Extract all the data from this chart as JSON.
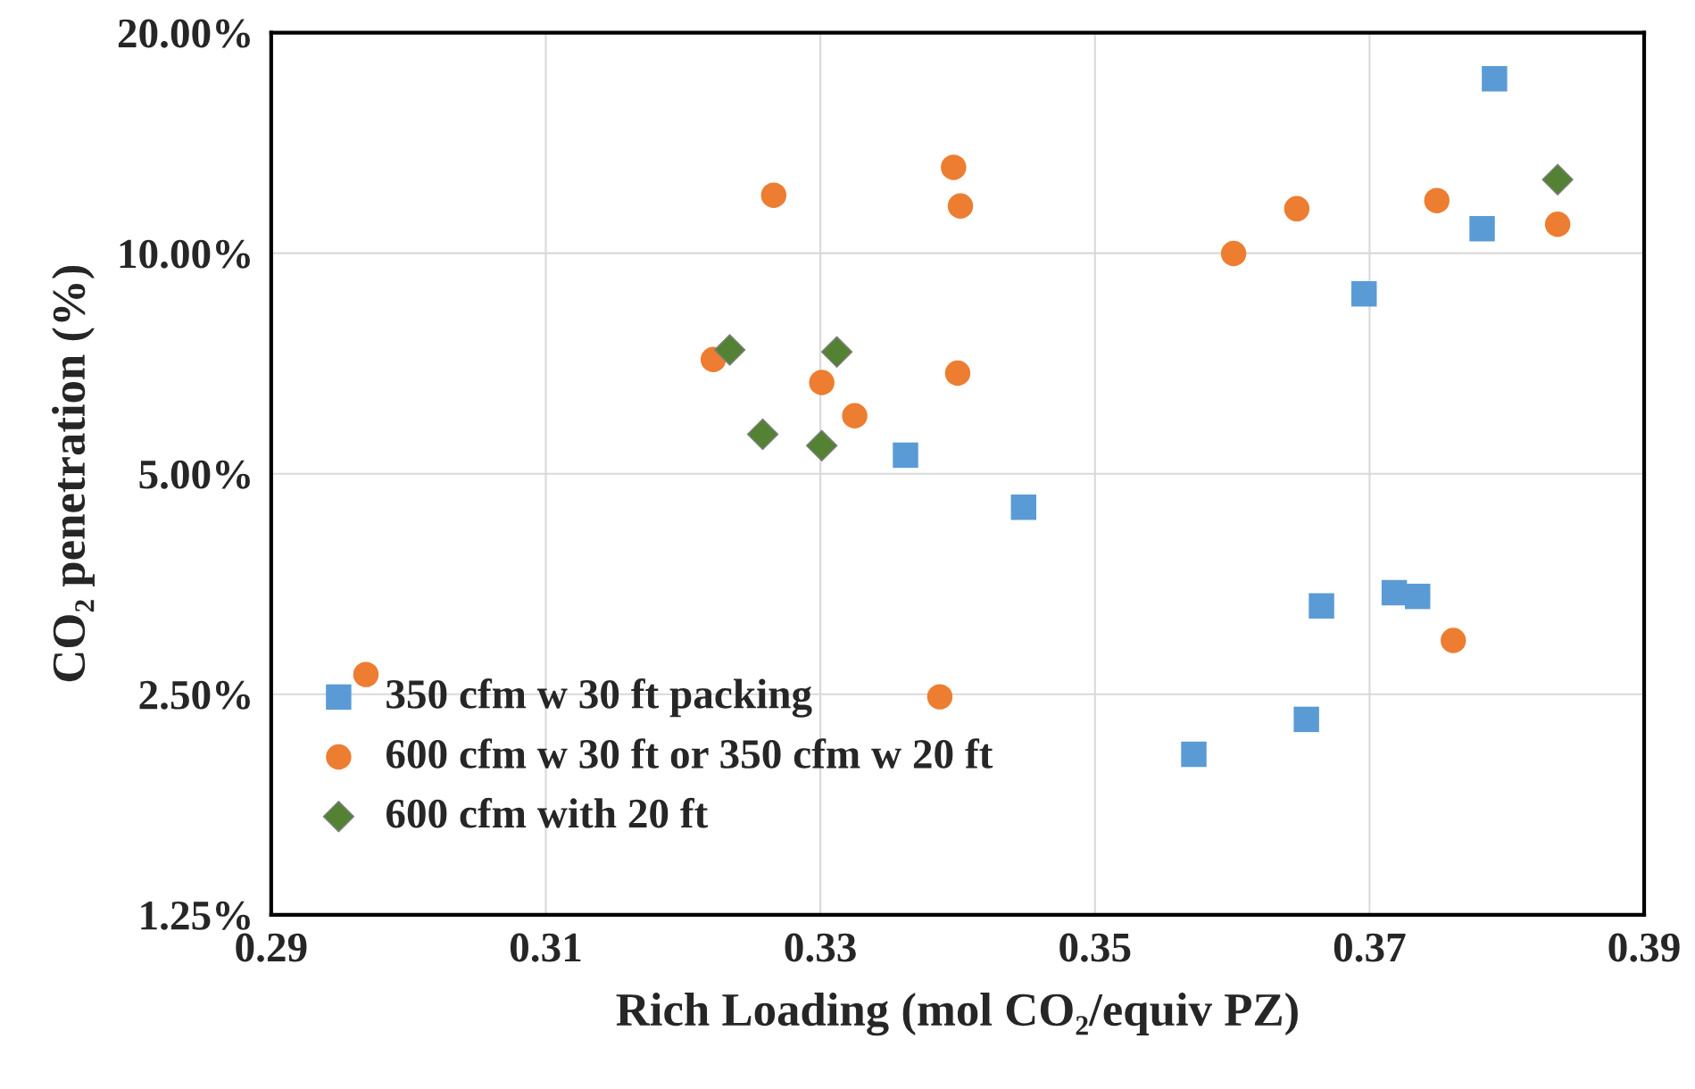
{
  "chart_data": {
    "type": "scatter",
    "xlabel": "Rich Loading (mol CO₂/equiv PZ)",
    "ylabel": "CO₂ penetration (%)",
    "xlim": [
      0.29,
      0.39
    ],
    "xticks": [
      {
        "value": 0.29,
        "label": "0.29"
      },
      {
        "value": 0.31,
        "label": "0.31"
      },
      {
        "value": 0.33,
        "label": "0.33"
      },
      {
        "value": 0.35,
        "label": "0.35"
      },
      {
        "value": 0.37,
        "label": "0.37"
      },
      {
        "value": 0.39,
        "label": "0.39"
      }
    ],
    "ylim": [
      1.25,
      20
    ],
    "yticks": [
      {
        "value": 1.25,
        "label": "1.25%"
      },
      {
        "value": 2.5,
        "label": "2.50%"
      },
      {
        "value": 5,
        "label": "5.00%"
      },
      {
        "value": 10,
        "label": "10.00%"
      },
      {
        "value": 20,
        "label": "20.00%"
      }
    ],
    "log": "y",
    "grid": true,
    "legend": "bottom left",
    "series": [
      {
        "name": "350 cfm w 30 ft packing",
        "color": "#5b9bd5",
        "marker": "square",
        "x": [
          0.3791,
          0.3782,
          0.3696,
          0.3362,
          0.3448,
          0.3665,
          0.3718,
          0.3735,
          0.3654,
          0.3572
        ],
        "values": [
          17.3,
          10.8,
          8.8,
          5.3,
          4.5,
          3.3,
          3.44,
          3.4,
          2.31,
          2.07
        ]
      },
      {
        "name": "600 cfm w 30 ft or 350 cfm w 20 ft",
        "color": "#ed7d31",
        "marker": "circle",
        "x": [
          0.2969,
          0.3222,
          0.3266,
          0.3301,
          0.3325,
          0.3397,
          0.3402,
          0.34,
          0.3387,
          0.3601,
          0.3647,
          0.3749,
          0.3761,
          0.3837
        ],
        "values": [
          2.66,
          7.16,
          12.0,
          6.66,
          6.0,
          13.1,
          11.6,
          6.86,
          2.48,
          9.99,
          11.5,
          11.8,
          2.96,
          10.95
        ]
      },
      {
        "name": "600 cfm with 20 ft",
        "color": "#548235",
        "marker": "diamond",
        "x": [
          0.3234,
          0.3312,
          0.3258,
          0.3301,
          0.3837
        ],
        "values": [
          7.38,
          7.33,
          5.66,
          5.46,
          12.6
        ]
      }
    ]
  }
}
